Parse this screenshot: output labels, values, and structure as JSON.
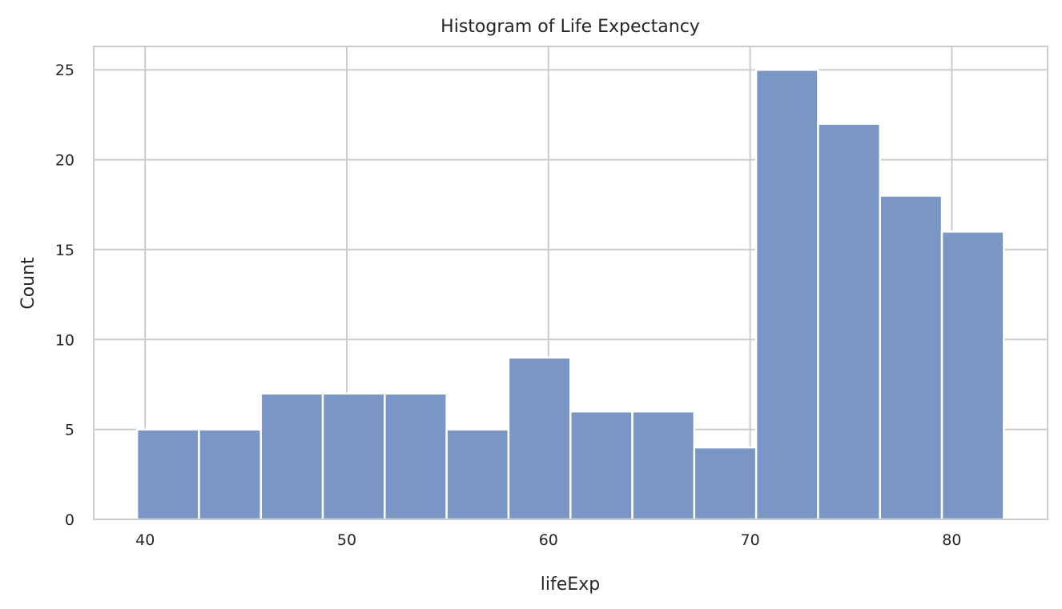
{
  "chart_data": {
    "type": "bar",
    "title": "Histogram of Life Expectancy",
    "xlabel": "lifeExp",
    "ylabel": "Count",
    "bin_edges": [
      39.6,
      42.67,
      45.74,
      48.81,
      51.88,
      54.95,
      58.02,
      61.09,
      64.16,
      67.23,
      70.3,
      73.37,
      76.44,
      79.51,
      82.58
    ],
    "values": [
      5,
      5,
      7,
      7,
      7,
      5,
      9,
      6,
      6,
      4,
      25,
      22,
      18,
      16
    ],
    "xlim": [
      37.45,
      84.75
    ],
    "ylim": [
      0,
      26.3
    ],
    "xticks": [
      40,
      50,
      60,
      70,
      80
    ],
    "yticks": [
      0,
      5,
      10,
      15,
      20,
      25
    ],
    "grid": true,
    "bar_color": "#7996c4"
  }
}
